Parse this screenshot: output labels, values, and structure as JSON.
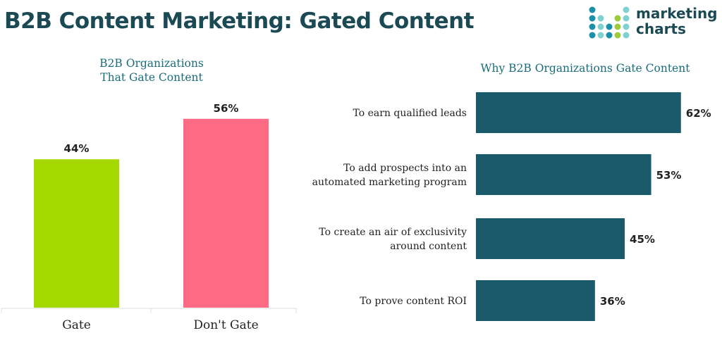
{
  "title": "B2B Content Marketing: Gated Content",
  "logo": {
    "line1": "marketing",
    "line2": "charts"
  },
  "chart_data": [
    {
      "type": "bar",
      "title": [
        "B2B Organizations",
        "That Gate Content"
      ],
      "categories": [
        "Gate",
        "Don't Gate"
      ],
      "values": [
        44,
        56
      ],
      "data_labels": [
        "44%",
        "56%"
      ],
      "colors": [
        "#a4d800",
        "#ff6b85"
      ],
      "ylim": [
        0,
        100
      ],
      "grid": false
    },
    {
      "type": "bar",
      "orientation": "horizontal",
      "title": "Why B2B Organizations Gate Content",
      "categories": [
        [
          "To earn qualified leads"
        ],
        [
          "To add prospects into an",
          "automated marketing program"
        ],
        [
          "To create an air of exclusivity",
          "around content"
        ],
        [
          "To prove content ROI"
        ]
      ],
      "values": [
        62,
        53,
        45,
        36
      ],
      "data_labels": [
        "62%",
        "53%",
        "45%",
        "36%"
      ],
      "color": "#1b5a6b",
      "xlim": [
        0,
        100
      ],
      "grid": false
    }
  ]
}
